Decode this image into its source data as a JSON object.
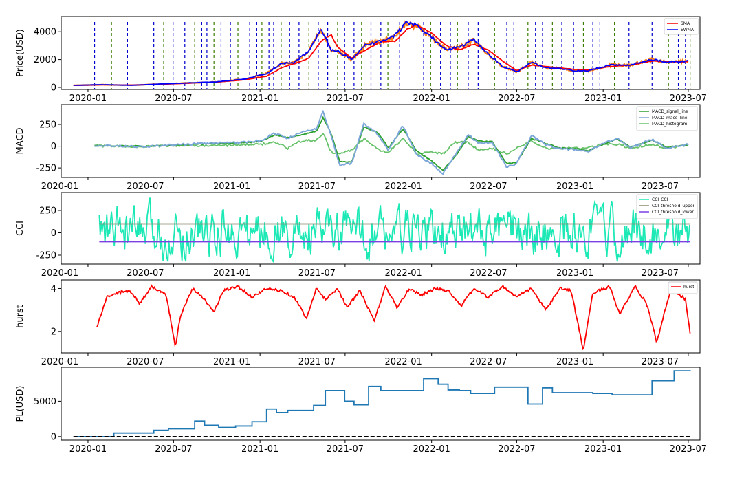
{
  "chart_data": [
    {
      "type": "line",
      "ylabel": "Price(USD)",
      "yticks": [
        0,
        2000,
        4000
      ],
      "ylim": [
        -150,
        5100
      ],
      "xticks": [
        "2020-01",
        "2020-07",
        "2021-01",
        "2021-07",
        "2022-01",
        "2022-07",
        "2023-01",
        "2023-07"
      ],
      "xlim": [
        "2019-11-05",
        "2023-07-26"
      ],
      "legend_position": "top-right",
      "colors": {
        "close": "#ff7f0e",
        "sma": "#ff0000",
        "ewma": "#0000ff",
        "buy_signal": "#0000cc",
        "sell_signal": "#3a7d00"
      },
      "series": [
        {
          "name": "SMA",
          "x": [
            "2019-12-01",
            "2020-02-01",
            "2020-04-01",
            "2020-06-01",
            "2020-08-01",
            "2020-10-01",
            "2020-12-01",
            "2021-01-15",
            "2021-02-15",
            "2021-03-15",
            "2021-04-15",
            "2021-05-10",
            "2021-06-01",
            "2021-06-15",
            "2021-07-15",
            "2021-08-15",
            "2021-09-15",
            "2021-10-15",
            "2021-11-10",
            "2021-12-01",
            "2022-01-01",
            "2022-02-01",
            "2022-03-01",
            "2022-04-01",
            "2022-05-01",
            "2022-06-01",
            "2022-07-01",
            "2022-08-01",
            "2022-09-01",
            "2022-10-01",
            "2022-11-01",
            "2022-12-01",
            "2023-01-15",
            "2023-03-01",
            "2023-04-15",
            "2023-05-15",
            "2023-07-01"
          ],
          "y": [
            140,
            180,
            170,
            220,
            300,
            380,
            550,
            800,
            1400,
            1700,
            2100,
            3300,
            3800,
            2900,
            2100,
            2700,
            3300,
            3300,
            4200,
            4500,
            3900,
            3000,
            2700,
            3100,
            2700,
            1900,
            1200,
            1600,
            1500,
            1400,
            1300,
            1250,
            1500,
            1600,
            1900,
            1850,
            1850
          ]
        },
        {
          "name": "EWMA",
          "x": [
            "2019-12-01",
            "2020-02-01",
            "2020-04-01",
            "2020-06-01",
            "2020-08-01",
            "2020-10-01",
            "2020-12-01",
            "2021-01-15",
            "2021-02-15",
            "2021-03-15",
            "2021-04-15",
            "2021-05-10",
            "2021-06-01",
            "2021-06-15",
            "2021-07-15",
            "2021-08-15",
            "2021-09-15",
            "2021-10-15",
            "2021-11-10",
            "2021-12-01",
            "2022-01-01",
            "2022-02-01",
            "2022-03-01",
            "2022-04-01",
            "2022-05-01",
            "2022-06-01",
            "2022-07-01",
            "2022-08-01",
            "2022-09-01",
            "2022-10-01",
            "2022-11-01",
            "2022-12-01",
            "2023-01-15",
            "2023-03-01",
            "2023-04-15",
            "2023-05-15",
            "2023-07-01"
          ],
          "y": [
            150,
            200,
            150,
            240,
            320,
            400,
            600,
            1000,
            1700,
            1800,
            2600,
            4200,
            2700,
            2600,
            2000,
            3100,
            3300,
            3700,
            4700,
            4400,
            3600,
            2700,
            2900,
            3400,
            2400,
            1500,
            1100,
            1800,
            1400,
            1350,
            1200,
            1200,
            1600,
            1600,
            2000,
            1800,
            1900
          ]
        }
      ],
      "vlines_dates": [
        "2020-01-15",
        "2020-02-20",
        "2020-03-25",
        "2020-05-20",
        "2020-06-10",
        "2020-06-30",
        "2020-07-25",
        "2020-08-15",
        "2020-08-30",
        "2020-09-10",
        "2020-09-25",
        "2020-10-10",
        "2020-10-30",
        "2020-11-15",
        "2020-12-10",
        "2020-12-25",
        "2021-01-05",
        "2021-01-20",
        "2021-01-30",
        "2021-02-15",
        "2021-03-05",
        "2021-03-25",
        "2021-04-15",
        "2021-05-05",
        "2021-05-25",
        "2021-06-15",
        "2021-06-30",
        "2021-07-20",
        "2021-08-05",
        "2021-08-25",
        "2021-09-15",
        "2021-09-30",
        "2021-10-25",
        "2021-12-15",
        "2021-12-30",
        "2022-01-20",
        "2022-02-10",
        "2022-02-25",
        "2022-03-20",
        "2022-04-10",
        "2022-05-15",
        "2022-06-10",
        "2022-06-25",
        "2022-07-25",
        "2022-08-10",
        "2022-08-25",
        "2022-09-15",
        "2022-10-05",
        "2022-10-30",
        "2022-11-20",
        "2022-12-10",
        "2022-12-25",
        "2023-01-25",
        "2023-02-25",
        "2023-04-15",
        "2023-05-20",
        "2023-06-10",
        "2023-06-25",
        "2023-07-05"
      ]
    },
    {
      "type": "line",
      "ylabel": "MACD",
      "yticks": [
        -250,
        0,
        250
      ],
      "ylim": [
        -360,
        480
      ],
      "xticks": [
        "2020-01",
        "2020-07",
        "2021-01",
        "2021-07",
        "2022-01",
        "2022-07",
        "2023-01",
        "2023-07"
      ],
      "legend_position": "top-right",
      "series": [
        {
          "name": "MACD_signal_line",
          "color": "#2ca02c"
        },
        {
          "name": "MACD_macd_line",
          "color": "#7aa6d8"
        },
        {
          "name": "MACD_histogram",
          "color": "#67c26a"
        }
      ],
      "x": [
        "2020-01-15",
        "2020-03-01",
        "2020-05-01",
        "2020-07-01",
        "2020-09-01",
        "2020-11-01",
        "2021-01-01",
        "2021-02-01",
        "2021-03-01",
        "2021-04-01",
        "2021-05-01",
        "2021-05-15",
        "2021-06-01",
        "2021-06-20",
        "2021-07-15",
        "2021-08-10",
        "2021-09-10",
        "2021-10-01",
        "2021-11-01",
        "2021-12-01",
        "2022-01-01",
        "2022-01-25",
        "2022-02-20",
        "2022-03-20",
        "2022-04-10",
        "2022-05-10",
        "2022-06-10",
        "2022-07-01",
        "2022-08-01",
        "2022-09-01",
        "2022-10-01",
        "2022-11-01",
        "2022-12-01",
        "2023-01-01",
        "2023-02-01",
        "2023-03-01",
        "2023-04-15",
        "2023-05-15",
        "2023-07-01"
      ],
      "macd": [
        10,
        5,
        -5,
        15,
        30,
        40,
        60,
        150,
        90,
        160,
        200,
        400,
        120,
        -220,
        -200,
        260,
        130,
        -50,
        240,
        -100,
        -200,
        -320,
        -100,
        130,
        40,
        40,
        -240,
        -200,
        120,
        20,
        -30,
        -40,
        -60,
        30,
        90,
        -20,
        80,
        -20,
        20
      ],
      "signal": [
        8,
        6,
        -2,
        12,
        25,
        35,
        50,
        130,
        100,
        130,
        170,
        330,
        150,
        -180,
        -180,
        220,
        150,
        -20,
        200,
        -60,
        -170,
        -280,
        -120,
        110,
        60,
        50,
        -200,
        -190,
        90,
        30,
        -20,
        -30,
        -50,
        20,
        80,
        -10,
        70,
        -10,
        15
      ]
    },
    {
      "type": "line",
      "ylabel": "CCI",
      "yticks": [
        -250,
        0,
        250
      ],
      "ylim": [
        -350,
        450
      ],
      "xticks": [
        "2020-01",
        "2020-07",
        "2021-01",
        "2021-07",
        "2022-01",
        "2022-07",
        "2023-01",
        "2023-07"
      ],
      "legend_position": "top-right",
      "series": [
        {
          "name": "CCI_CCI",
          "color": "#1de9b6"
        },
        {
          "name": "CCI_threshold_upper",
          "color": "#8c8c70",
          "value": 100
        },
        {
          "name": "CCI_threshold_lower",
          "color": "#7b3fe4",
          "value": -100
        }
      ]
    },
    {
      "type": "line",
      "ylabel": "hurst",
      "yticks": [
        2,
        4
      ],
      "ylim": [
        1.0,
        4.4
      ],
      "xticks": [
        "2020-01",
        "2020-07",
        "2021-01",
        "2021-07",
        "2022-01",
        "2022-07",
        "2023-01",
        "2023-07"
      ],
      "legend_position": "top-right",
      "series": [
        {
          "name": "hurst",
          "color": "#ff0000"
        }
      ],
      "x": [
        "2020-01-20",
        "2020-02-10",
        "2020-03-05",
        "2020-03-30",
        "2020-04-20",
        "2020-05-15",
        "2020-06-15",
        "2020-07-05",
        "2020-07-15",
        "2020-08-10",
        "2020-09-01",
        "2020-09-25",
        "2020-10-15",
        "2020-11-15",
        "2020-12-15",
        "2021-01-15",
        "2021-02-15",
        "2021-03-15",
        "2021-04-10",
        "2021-05-01",
        "2021-05-20",
        "2021-06-15",
        "2021-07-05",
        "2021-08-01",
        "2021-09-01",
        "2021-09-25",
        "2021-10-20",
        "2021-11-15",
        "2021-12-10",
        "2022-01-10",
        "2022-02-05",
        "2022-03-05",
        "2022-04-01",
        "2022-05-01",
        "2022-06-01",
        "2022-07-01",
        "2022-08-01",
        "2022-09-01",
        "2022-10-01",
        "2022-10-25",
        "2022-11-20",
        "2022-12-10",
        "2023-01-15",
        "2023-02-05",
        "2023-03-10",
        "2023-04-05",
        "2023-04-25",
        "2023-05-25",
        "2023-06-25",
        "2023-07-05"
      ],
      "y": [
        2.2,
        3.6,
        3.8,
        3.9,
        3.3,
        4.1,
        3.7,
        1.3,
        2.7,
        4.0,
        3.6,
        2.9,
        3.9,
        4.1,
        3.6,
        4.0,
        3.9,
        3.6,
        2.6,
        4.0,
        3.5,
        4.0,
        3.1,
        3.9,
        2.5,
        4.1,
        3.1,
        4.0,
        3.7,
        4.0,
        3.9,
        3.2,
        4.0,
        3.6,
        4.1,
        3.6,
        4.0,
        3.0,
        4.0,
        3.9,
        1.1,
        3.8,
        4.1,
        2.8,
        4.1,
        3.2,
        1.5,
        4.0,
        3.5,
        1.9
      ]
    },
    {
      "type": "line",
      "ylabel": "PL(USD)",
      "yticks": [
        0,
        5000
      ],
      "ylim": [
        -500,
        9800
      ],
      "xticks": [
        "2020-01",
        "2020-07",
        "2021-01",
        "2021-07",
        "2022-01",
        "2022-07",
        "2023-01",
        "2023-07"
      ],
      "series": [
        {
          "name": "PL",
          "color": "#1f77b4",
          "step": true,
          "x": [
            "2019-12-01",
            "2020-02-25",
            "2020-05-20",
            "2020-06-20",
            "2020-07-25",
            "2020-08-15",
            "2020-09-05",
            "2020-10-05",
            "2020-11-10",
            "2020-12-15",
            "2021-01-15",
            "2021-02-05",
            "2021-03-01",
            "2021-04-01",
            "2021-04-25",
            "2021-05-20",
            "2021-06-30",
            "2021-07-20",
            "2021-08-20",
            "2021-09-15",
            "2021-11-01",
            "2021-12-15",
            "2022-01-15",
            "2022-02-05",
            "2022-03-01",
            "2022-03-25",
            "2022-05-15",
            "2022-06-10",
            "2022-07-25",
            "2022-08-25",
            "2022-09-15",
            "2022-11-05",
            "2022-12-10",
            "2023-01-20",
            "2023-04-15",
            "2023-06-01",
            "2023-07-05"
          ],
          "y": [
            0,
            500,
            900,
            1100,
            1100,
            2200,
            1600,
            1300,
            1500,
            2100,
            3900,
            3400,
            3700,
            3700,
            4400,
            6500,
            5000,
            4500,
            7100,
            6500,
            6500,
            8200,
            7400,
            6600,
            6500,
            6100,
            7000,
            7000,
            4600,
            6900,
            6200,
            6200,
            6100,
            5900,
            7900,
            9300,
            9200
          ]
        },
        {
          "name": "zero",
          "color": "#000000",
          "dashed": true,
          "value": 0
        }
      ]
    }
  ]
}
